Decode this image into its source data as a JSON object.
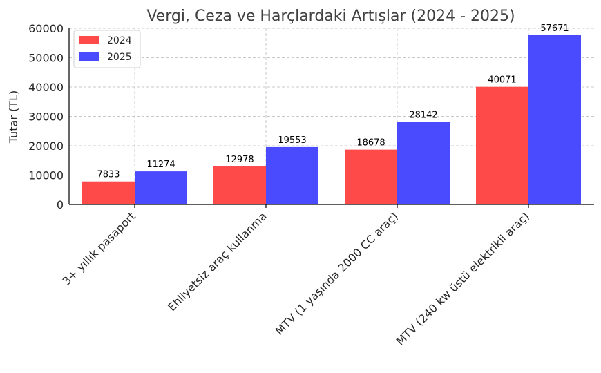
{
  "chart_data": {
    "type": "bar",
    "title": "Vergi, Ceza ve Harçlardaki Artışlar (2024 - 2025)",
    "xlabel": "",
    "ylabel": "Tutar (TL)",
    "ylim": [
      0,
      60000
    ],
    "yticks": [
      0,
      10000,
      20000,
      30000,
      40000,
      50000,
      60000
    ],
    "grid": true,
    "legend_position": "top-left",
    "categories": [
      "3+ yıllık pasaport",
      "Ehliyetsiz araç kullanma",
      "MTV (1 yaşında 2000 CC araç)",
      "MTV (240 kw üstü elektrikli araç)"
    ],
    "series": [
      {
        "name": "2024",
        "color": "#ff4a4a",
        "values": [
          7833,
          12978,
          18678,
          40071
        ]
      },
      {
        "name": "2025",
        "color": "#4a4aff",
        "values": [
          11274,
          19553,
          28142,
          57671
        ]
      }
    ]
  }
}
